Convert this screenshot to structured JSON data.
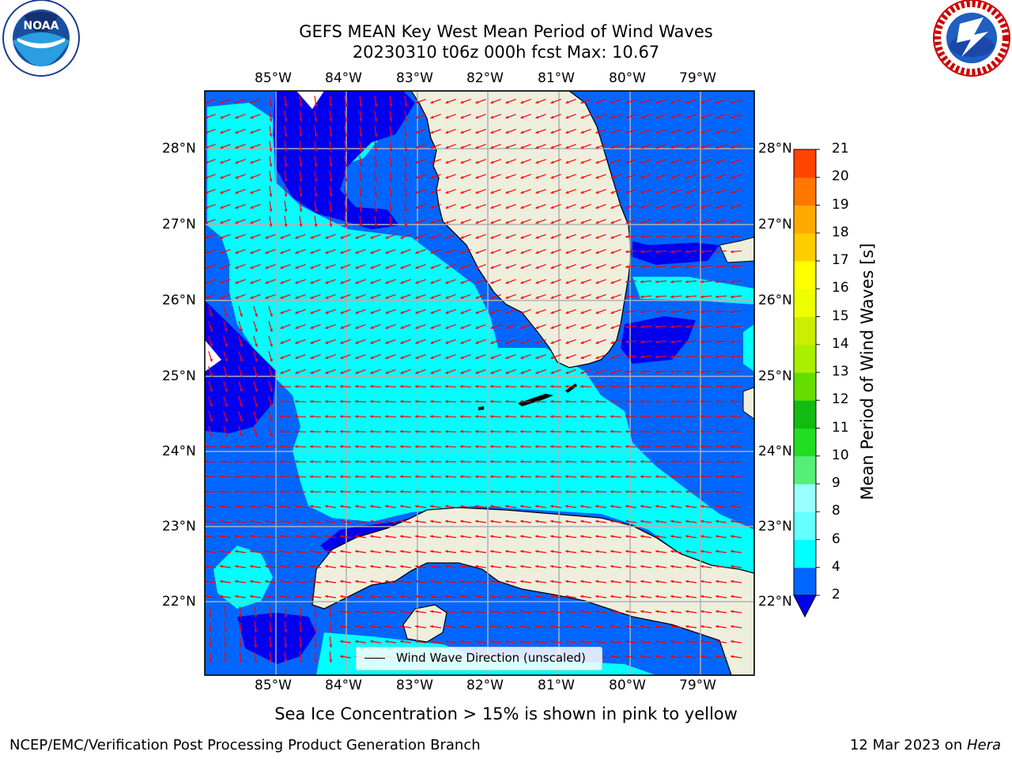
{
  "header": {
    "title_line1": "GEFS MEAN Key West Mean Period of Wind Waves",
    "title_line2": "20230310 t06z 000h fcst   Max: 10.67"
  },
  "logos": {
    "left_text": "NOAA",
    "left_ring_text": "NATIONAL OCEANIC AND ATMOSPHERIC ADMINISTRATION · U.S. DEPARTMENT OF COMMERCE",
    "right_ring_text": "NATIONAL WEATHER SERVICE"
  },
  "map": {
    "lon_labels": [
      "85°W",
      "84°W",
      "83°W",
      "82°W",
      "81°W",
      "80°W",
      "79°W"
    ],
    "lat_labels": [
      "28°N",
      "27°N",
      "26°N",
      "25°N",
      "24°N",
      "23°N",
      "22°N"
    ],
    "legend_label": "Wind Wave Direction (unscaled)",
    "colors": {
      "land": "#EEEEDD",
      "gridline": "#B0B0B0",
      "arrow": "#FF0000"
    }
  },
  "colorbar": {
    "label": "Mean Period of Wind Waves [s]",
    "ticks": [
      "2",
      "4",
      "6",
      "8",
      "9",
      "10",
      "11",
      "12",
      "13",
      "14",
      "15",
      "16",
      "17",
      "18",
      "19",
      "20",
      "21"
    ],
    "colors": [
      "#0066FF",
      "#00FFFF",
      "#66FFFF",
      "#99FFFF",
      "#55EE77",
      "#22DD22",
      "#11BB11",
      "#66DD00",
      "#AAEE00",
      "#CCEE00",
      "#EEFF00",
      "#FFFF00",
      "#FFCC00",
      "#FFAA00",
      "#FF7700",
      "#FF4400",
      "#FF0000"
    ],
    "under_color": "#0000EE"
  },
  "footer": {
    "sea_ice_note": "Sea Ice Concentration > 15% is shown in pink to yellow",
    "left": "NCEP/EMC/Verification Post Processing Product Generation Branch",
    "right_prefix": "12 Mar 2023 on ",
    "right_host": "Hera"
  }
}
